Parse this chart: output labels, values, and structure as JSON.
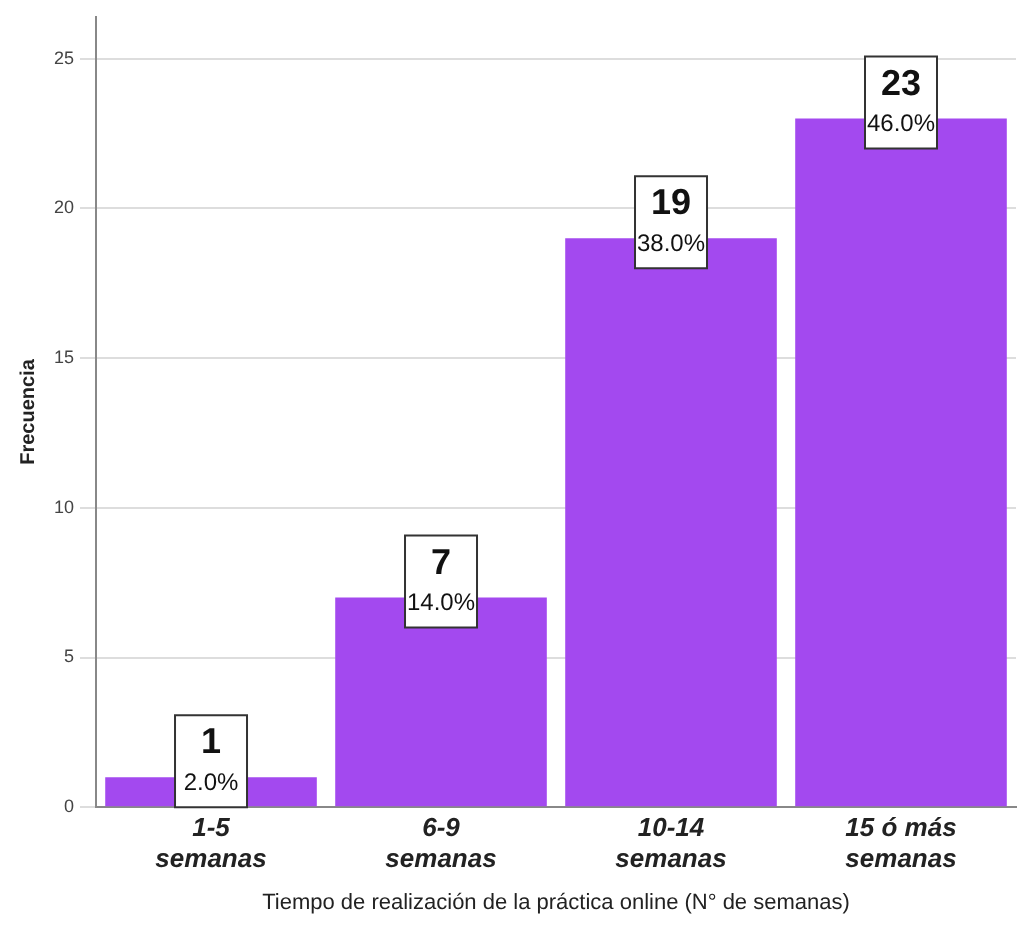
{
  "chart_data": {
    "type": "bar",
    "xlabel": "Tiempo de realización de la práctica online (N° de semanas)",
    "ylabel": "Frecuencia",
    "categories": [
      "1-5\nsemanas",
      "6-9\nsemanas",
      "10-14\nsemanas",
      "15 ó más\nsemanas"
    ],
    "values": [
      1,
      7,
      19,
      23
    ],
    "color": "#a349ef",
    "value_labels": [
      "1\n2.0%",
      "7\n14.0%",
      "19\n38.0%",
      "23\n46.0%"
    ],
    "ylim": [
      0,
      26.4
    ],
    "yticks": [
      0,
      5,
      10,
      15,
      20,
      25
    ],
    "grid": "y",
    "legend": false
  }
}
